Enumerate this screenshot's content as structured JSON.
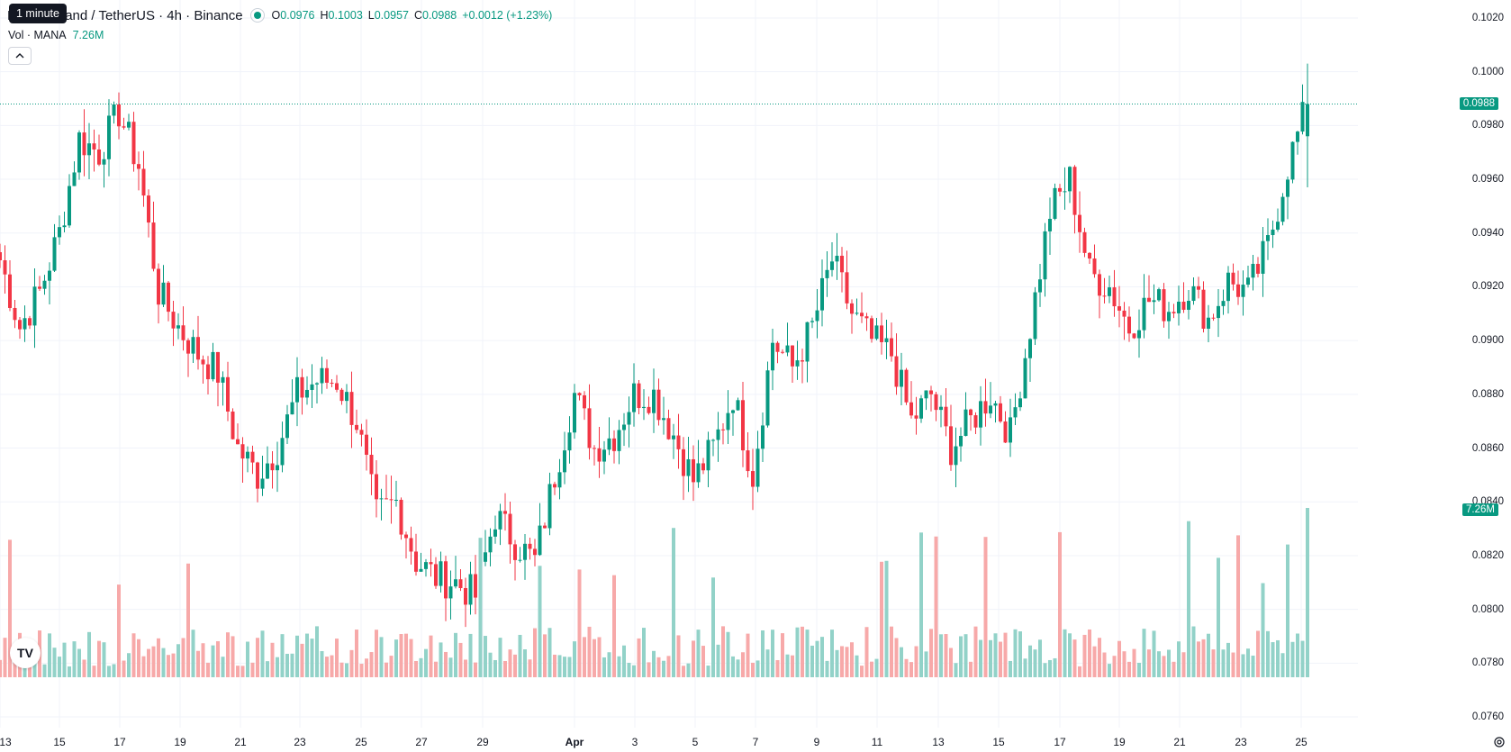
{
  "header": {
    "symbol_title": "Decentraland / TetherUS · 4h · Binance",
    "open_label": "O",
    "open_value": "0.0976",
    "high_label": "H",
    "high_value": "0.1003",
    "low_label": "L",
    "low_value": "0.0957",
    "close_label": "C",
    "close_value": "0.0988",
    "change": "+0.0012 (+1.23%)"
  },
  "tooltip": "1 minute",
  "volume_legend": {
    "label": "Vol · MANA",
    "value": "7.26M"
  },
  "price_axis": {
    "labels": [
      "0.1020",
      "0.1000",
      "0.0980",
      "0.0960",
      "0.0940",
      "0.0920",
      "0.0900",
      "0.0880",
      "0.0860",
      "0.0840",
      "0.0820",
      "0.0800",
      "0.0780",
      "0.0760"
    ],
    "last_price": "0.0988",
    "volume_tag": "7.26M"
  },
  "time_axis": {
    "labels": [
      "13",
      "15",
      "17",
      "19",
      "21",
      "23",
      "25",
      "27",
      "29",
      "Apr",
      "3",
      "5",
      "7",
      "9",
      "11",
      "13",
      "15",
      "17",
      "19",
      "21",
      "23",
      "25"
    ]
  },
  "colors": {
    "up": "#089981",
    "down": "#f23645",
    "up_vol": "#92d2c8",
    "down_vol": "#f7a9a9"
  },
  "chart_data": {
    "type": "candlestick",
    "timeframe": "4h",
    "last": {
      "open": 0.0976,
      "high": 0.1003,
      "low": 0.0957,
      "close": 0.0988
    },
    "ylim": [
      0.0756,
      0.1024
    ],
    "anchors": [
      0.093,
      0.0905,
      0.0918,
      0.094,
      0.0975,
      0.097,
      0.0985,
      0.0965,
      0.0918,
      0.0905,
      0.0895,
      0.0888,
      0.086,
      0.085,
      0.086,
      0.088,
      0.0885,
      0.0885,
      0.087,
      0.0835,
      0.084,
      0.0818,
      0.0812,
      0.081,
      0.0805,
      0.0835,
      0.0825,
      0.0818,
      0.085,
      0.088,
      0.086,
      0.0865,
      0.088,
      0.088,
      0.0865,
      0.0848,
      0.086,
      0.088,
      0.085,
      0.09,
      0.089,
      0.0905,
      0.093,
      0.091,
      0.09,
      0.0895,
      0.087,
      0.088,
      0.086,
      0.087,
      0.088,
      0.0865,
      0.0905,
      0.0948,
      0.096,
      0.0925,
      0.092,
      0.0905,
      0.0915,
      0.0912,
      0.092,
      0.0908,
      0.0922,
      0.0918,
      0.0935,
      0.0965,
      0.0988
    ]
  }
}
